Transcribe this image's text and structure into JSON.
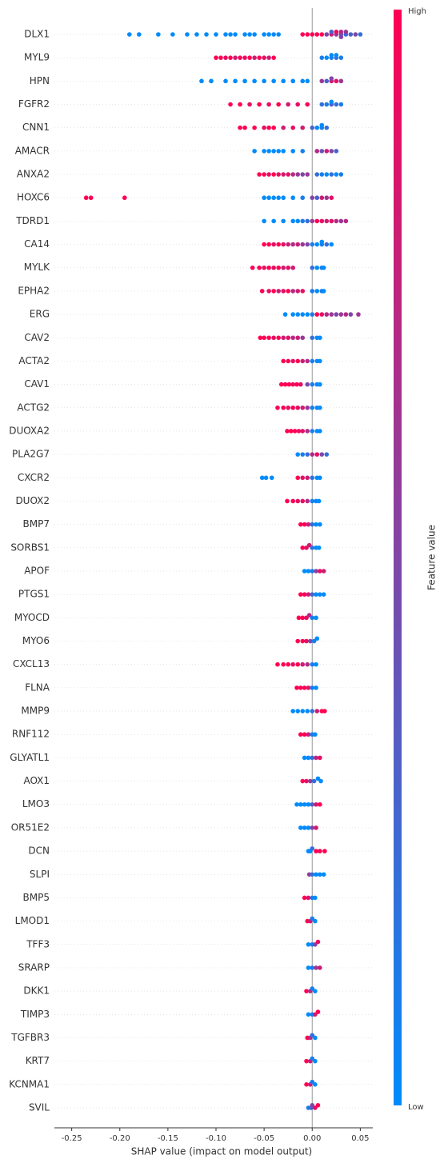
{
  "chart_data": {
    "type": "beeswarm",
    "xlabel": "SHAP value (impact on model output)",
    "xlim": [
      -0.268,
      0.063
    ],
    "xticks": [
      {
        "value": -0.25,
        "label": "-0.25"
      },
      {
        "value": -0.2,
        "label": "-0.20"
      },
      {
        "value": -0.15,
        "label": "-0.15"
      },
      {
        "value": -0.1,
        "label": "-0.10"
      },
      {
        "value": -0.05,
        "label": "-0.05"
      },
      {
        "value": 0,
        "label": "0.00"
      },
      {
        "value": 0.05,
        "label": "0.05"
      }
    ],
    "colorbar": {
      "label": "Feature value",
      "high": "High",
      "low": "Low",
      "low_color": "#008bfb",
      "high_color": "#ff0052"
    },
    "features": [
      {
        "name": "DLX1",
        "shap": [
          -0.19,
          -0.18,
          -0.16,
          -0.145,
          -0.13,
          -0.12,
          -0.11,
          -0.1,
          -0.09,
          -0.085,
          -0.08,
          -0.07,
          -0.065,
          -0.06,
          -0.05,
          -0.045,
          -0.04,
          -0.035,
          -0.01,
          -0.005,
          0.0,
          0.005,
          0.01,
          0.015,
          0.02,
          0.02,
          0.025,
          0.025,
          0.03,
          0.03,
          0.03,
          0.035,
          0.035,
          0.04,
          0.045,
          0.05
        ],
        "feature_values": [
          0,
          0,
          0,
          0,
          0,
          0,
          0,
          0,
          0,
          0,
          0,
          0,
          0,
          0,
          0,
          0,
          0,
          0,
          1,
          1,
          1,
          1,
          1,
          0.5,
          0.8,
          0.3,
          0.6,
          0.9,
          0.4,
          0.7,
          0.5,
          0.2,
          0.6,
          0.3,
          0.5,
          0.2
        ]
      },
      {
        "name": "MYL9",
        "shap": [
          -0.1,
          -0.095,
          -0.09,
          -0.085,
          -0.08,
          -0.075,
          -0.07,
          -0.065,
          -0.06,
          -0.055,
          -0.05,
          -0.045,
          -0.04,
          0.01,
          0.015,
          0.02,
          0.02,
          0.025,
          0.025,
          0.03
        ],
        "feature_values": [
          1,
          1,
          0.9,
          1,
          0.8,
          1,
          0.9,
          1,
          0.8,
          1,
          0.9,
          0.8,
          1,
          0.1,
          0,
          0.1,
          0,
          0.2,
          0,
          0.1
        ]
      },
      {
        "name": "HPN",
        "shap": [
          -0.115,
          -0.105,
          -0.09,
          -0.08,
          -0.07,
          -0.06,
          -0.05,
          -0.04,
          -0.03,
          -0.02,
          -0.01,
          -0.005,
          0.01,
          0.015,
          0.02,
          0.02,
          0.025,
          0.03
        ],
        "feature_values": [
          0,
          0,
          0,
          0,
          0,
          0,
          0,
          0,
          0,
          0,
          0,
          0,
          0.6,
          0.3,
          0.8,
          0.5,
          0.9,
          0.6
        ]
      },
      {
        "name": "FGFR2",
        "shap": [
          -0.085,
          -0.075,
          -0.065,
          -0.055,
          -0.045,
          -0.035,
          -0.025,
          -0.015,
          -0.005,
          0.01,
          0.015,
          0.02,
          0.02,
          0.025,
          0.03
        ],
        "feature_values": [
          1,
          1,
          0.9,
          1,
          0.9,
          1,
          0.8,
          0.9,
          1,
          0.2,
          0.1,
          0.3,
          0,
          0.2,
          0.1
        ]
      },
      {
        "name": "CNN1",
        "shap": [
          -0.075,
          -0.07,
          -0.06,
          -0.05,
          -0.045,
          -0.04,
          -0.03,
          -0.02,
          -0.01,
          0.0,
          0.005,
          0.01,
          0.01,
          0.015
        ],
        "feature_values": [
          1,
          1,
          1,
          0.9,
          1,
          1,
          0.8,
          0.9,
          0.8,
          0.3,
          0,
          0.1,
          0,
          0.2
        ]
      },
      {
        "name": "AMACR",
        "shap": [
          -0.06,
          -0.05,
          -0.045,
          -0.04,
          -0.035,
          -0.03,
          -0.02,
          -0.01,
          0.005,
          0.01,
          0.015,
          0.02,
          0.025
        ],
        "feature_values": [
          0,
          0,
          0,
          0,
          0,
          0,
          0,
          0.1,
          0.7,
          0.4,
          0.8,
          0.5,
          0.3
        ]
      },
      {
        "name": "ANXA2",
        "shap": [
          -0.055,
          -0.05,
          -0.045,
          -0.04,
          -0.035,
          -0.03,
          -0.025,
          -0.02,
          -0.015,
          -0.01,
          -0.005,
          0.005,
          0.01,
          0.015,
          0.02,
          0.025,
          0.03
        ],
        "feature_values": [
          1,
          1,
          0.9,
          1,
          0.9,
          0.8,
          0.9,
          0.7,
          0.6,
          0.5,
          0.6,
          0.2,
          0.1,
          0,
          0.2,
          0,
          0.1
        ]
      },
      {
        "name": "HOXC6",
        "shap": [
          -0.235,
          -0.23,
          -0.195,
          -0.05,
          -0.045,
          -0.04,
          -0.035,
          -0.03,
          -0.02,
          -0.01,
          0.0,
          0.005,
          0.01,
          0.015,
          0.02
        ],
        "feature_values": [
          1,
          1,
          1,
          0,
          0,
          0,
          0,
          0,
          0,
          0.1,
          0.5,
          0.3,
          0.8,
          0.6,
          0.9
        ]
      },
      {
        "name": "TDRD1",
        "shap": [
          -0.05,
          -0.04,
          -0.03,
          -0.02,
          -0.015,
          -0.01,
          -0.005,
          0.0,
          0.005,
          0.01,
          0.015,
          0.02,
          0.025,
          0.03,
          0.035
        ],
        "feature_values": [
          0,
          0,
          0,
          0,
          0,
          0.1,
          0.2,
          0.6,
          1,
          0.9,
          0.8,
          0.9,
          0.7,
          0.6,
          0.7
        ]
      },
      {
        "name": "CA14",
        "shap": [
          -0.05,
          -0.045,
          -0.04,
          -0.035,
          -0.03,
          -0.025,
          -0.02,
          -0.015,
          -0.01,
          -0.005,
          0.0,
          0.005,
          0.01,
          0.01,
          0.015,
          0.02
        ],
        "feature_values": [
          1,
          1,
          0.9,
          1,
          0.9,
          0.8,
          0.7,
          0.8,
          0.6,
          0.5,
          0.1,
          0,
          0.1,
          0,
          0.2,
          0
        ]
      },
      {
        "name": "MYLK",
        "shap": [
          -0.062,
          -0.055,
          -0.05,
          -0.045,
          -0.04,
          -0.035,
          -0.03,
          -0.025,
          -0.02,
          0.0,
          0.005,
          0.01,
          0.012
        ],
        "feature_values": [
          1,
          1,
          0.9,
          1,
          0.9,
          1,
          0.8,
          0.9,
          0.8,
          0.2,
          0,
          0.1,
          0
        ]
      },
      {
        "name": "EPHA2",
        "shap": [
          -0.052,
          -0.045,
          -0.04,
          -0.035,
          -0.03,
          -0.025,
          -0.02,
          -0.015,
          -0.01,
          0.0,
          0.005,
          0.01,
          0.012
        ],
        "feature_values": [
          1,
          0.9,
          1,
          0.8,
          0.9,
          1,
          0.7,
          0.8,
          0.9,
          0.1,
          0,
          0.1,
          0
        ]
      },
      {
        "name": "ERG",
        "shap": [
          -0.028,
          -0.02,
          -0.015,
          -0.01,
          -0.005,
          0.0,
          0.005,
          0.01,
          0.015,
          0.02,
          0.025,
          0.03,
          0.035,
          0.04,
          0.048
        ],
        "feature_values": [
          0,
          0,
          0,
          0,
          0,
          0.1,
          1,
          0.9,
          0.7,
          0.6,
          0.5,
          0.6,
          0.7,
          0.5,
          0.6
        ]
      },
      {
        "name": "CAV2",
        "shap": [
          -0.054,
          -0.05,
          -0.045,
          -0.04,
          -0.035,
          -0.03,
          -0.025,
          -0.02,
          -0.015,
          -0.01,
          0.0,
          0.005,
          0.008
        ],
        "feature_values": [
          1,
          1,
          1,
          0.9,
          1,
          0.8,
          0.9,
          0.7,
          0.8,
          0.6,
          0.2,
          0,
          0
        ]
      },
      {
        "name": "ACTA2",
        "shap": [
          -0.03,
          -0.025,
          -0.02,
          -0.015,
          -0.01,
          -0.005,
          0.0,
          0.005,
          0.008
        ],
        "feature_values": [
          1,
          1,
          0.9,
          1,
          0.8,
          0.7,
          0.1,
          0,
          0
        ]
      },
      {
        "name": "CAV1",
        "shap": [
          -0.032,
          -0.028,
          -0.024,
          -0.02,
          -0.016,
          -0.012,
          -0.005,
          0.0,
          0.005,
          0.008
        ],
        "feature_values": [
          1,
          1,
          1,
          0.9,
          1,
          0.9,
          0.5,
          0.1,
          0,
          0
        ]
      },
      {
        "name": "ACTG2",
        "shap": [
          -0.036,
          -0.03,
          -0.025,
          -0.02,
          -0.015,
          -0.01,
          -0.005,
          0.0,
          0.005,
          0.008
        ],
        "feature_values": [
          1,
          1,
          0.9,
          1,
          0.9,
          0.8,
          0.6,
          0.1,
          0,
          0
        ]
      },
      {
        "name": "DUOXA2",
        "shap": [
          -0.026,
          -0.022,
          -0.018,
          -0.014,
          -0.01,
          -0.005,
          0.0,
          0.005,
          0.008
        ],
        "feature_values": [
          1,
          1,
          1,
          0.9,
          0.9,
          0.7,
          0.1,
          0,
          0
        ]
      },
      {
        "name": "PLA2G7",
        "shap": [
          -0.015,
          -0.01,
          -0.005,
          0.0,
          0.005,
          0.01,
          0.015
        ],
        "feature_values": [
          0,
          0.1,
          0.2,
          0.7,
          0.9,
          0.5,
          0.2
        ]
      },
      {
        "name": "CXCR2",
        "shap": [
          -0.052,
          -0.048,
          -0.042,
          -0.015,
          -0.01,
          -0.005,
          0.0,
          0.005,
          0.008
        ],
        "feature_values": [
          0,
          0,
          0,
          1,
          0.9,
          0.8,
          0.2,
          0,
          0
        ]
      },
      {
        "name": "DUOX2",
        "shap": [
          -0.026,
          -0.02,
          -0.015,
          -0.01,
          -0.005,
          0.0,
          0.004,
          0.007
        ],
        "feature_values": [
          1,
          1,
          0.9,
          0.9,
          0.7,
          0.1,
          0,
          0
        ]
      },
      {
        "name": "BMP7",
        "shap": [
          -0.012,
          -0.008,
          -0.004,
          0.0,
          0.004,
          0.008
        ],
        "feature_values": [
          1,
          1,
          0.8,
          0.2,
          0,
          0
        ]
      },
      {
        "name": "SORBS1",
        "shap": [
          -0.01,
          -0.006,
          -0.003,
          0.0,
          0.004,
          0.007
        ],
        "feature_values": [
          1,
          0.9,
          0.8,
          0.2,
          0,
          0
        ]
      },
      {
        "name": "APOF",
        "shap": [
          -0.008,
          -0.004,
          0.0,
          0.004,
          0.008,
          0.012
        ],
        "feature_values": [
          0,
          0,
          0.1,
          0.5,
          0.9,
          0.8
        ]
      },
      {
        "name": "PTGS1",
        "shap": [
          -0.012,
          -0.008,
          -0.004,
          0.0,
          0.004,
          0.008,
          0.012
        ],
        "feature_values": [
          1,
          1,
          0.8,
          0.3,
          0,
          0,
          0
        ]
      },
      {
        "name": "MYOCD",
        "shap": [
          -0.014,
          -0.01,
          -0.006,
          -0.003,
          0.0,
          0.004
        ],
        "feature_values": [
          1,
          1,
          0.9,
          0.7,
          0.1,
          0
        ]
      },
      {
        "name": "MYO6",
        "shap": [
          -0.015,
          -0.01,
          -0.006,
          -0.002,
          0.002,
          0.005
        ],
        "feature_values": [
          1,
          1,
          0.9,
          0.5,
          0.1,
          0
        ]
      },
      {
        "name": "CXCL13",
        "shap": [
          -0.036,
          -0.03,
          -0.025,
          -0.02,
          -0.015,
          -0.01,
          -0.005,
          0.0,
          0.004
        ],
        "feature_values": [
          1,
          1,
          1,
          0.9,
          1,
          0.8,
          0.7,
          0.1,
          0
        ]
      },
      {
        "name": "FLNA",
        "shap": [
          -0.016,
          -0.012,
          -0.008,
          -0.004,
          0.0,
          0.004
        ],
        "feature_values": [
          1,
          1,
          1,
          0.9,
          0.1,
          0
        ]
      },
      {
        "name": "MMP9",
        "shap": [
          -0.02,
          -0.015,
          -0.01,
          -0.005,
          0.0,
          0.005,
          0.01,
          0.013
        ],
        "feature_values": [
          0,
          0,
          0,
          0,
          0.2,
          0.8,
          1,
          1
        ]
      },
      {
        "name": "RNF112",
        "shap": [
          -0.012,
          -0.008,
          -0.004,
          0.0,
          0.003
        ],
        "feature_values": [
          1,
          1,
          0.8,
          0.1,
          0
        ]
      },
      {
        "name": "GLYATL1",
        "shap": [
          -0.008,
          -0.004,
          0.0,
          0.004,
          0.008
        ],
        "feature_values": [
          0,
          0,
          0.2,
          0.7,
          0.9
        ]
      },
      {
        "name": "AOX1",
        "shap": [
          -0.01,
          -0.006,
          -0.002,
          0.002,
          0.006,
          0.009
        ],
        "feature_values": [
          1,
          0.9,
          0.6,
          0.2,
          0,
          0
        ]
      },
      {
        "name": "LMO3",
        "shap": [
          -0.016,
          -0.012,
          -0.008,
          -0.004,
          0.0,
          0.004,
          0.008
        ],
        "feature_values": [
          0,
          0,
          0,
          0,
          0.3,
          0.8,
          1
        ]
      },
      {
        "name": "OR51E2",
        "shap": [
          -0.012,
          -0.008,
          -0.004,
          0.0,
          0.004
        ],
        "feature_values": [
          0,
          0,
          0,
          0.5,
          0.8
        ]
      },
      {
        "name": "DCN",
        "shap": [
          -0.004,
          -0.002,
          0.0,
          0.004,
          0.008,
          0.013
        ],
        "feature_values": [
          0,
          0,
          0.2,
          1,
          1,
          1
        ]
      },
      {
        "name": "SLPI",
        "shap": [
          -0.003,
          0.0,
          0.004,
          0.008,
          0.012
        ],
        "feature_values": [
          0.6,
          0.2,
          0,
          0,
          0
        ]
      },
      {
        "name": "BMP5",
        "shap": [
          -0.008,
          -0.004,
          0.0,
          0.003
        ],
        "feature_values": [
          1,
          0.9,
          0.1,
          0
        ]
      },
      {
        "name": "LMOD1",
        "shap": [
          -0.005,
          -0.002,
          0.0,
          0.003
        ],
        "feature_values": [
          1,
          0.8,
          0.1,
          0
        ]
      },
      {
        "name": "TFF3",
        "shap": [
          -0.004,
          0.0,
          0.003,
          0.006
        ],
        "feature_values": [
          0,
          0.1,
          0.5,
          0.9
        ]
      },
      {
        "name": "SRARP",
        "shap": [
          -0.004,
          0.0,
          0.004,
          0.008
        ],
        "feature_values": [
          0,
          0.1,
          0.6,
          0.8
        ]
      },
      {
        "name": "DKK1",
        "shap": [
          -0.006,
          -0.002,
          0.0,
          0.003
        ],
        "feature_values": [
          1,
          0.7,
          0.1,
          0
        ]
      },
      {
        "name": "TIMP3",
        "shap": [
          -0.004,
          0.0,
          0.003,
          0.006
        ],
        "feature_values": [
          0,
          0.1,
          0.8,
          1
        ]
      },
      {
        "name": "TGFBR3",
        "shap": [
          -0.005,
          -0.002,
          0.0,
          0.003
        ],
        "feature_values": [
          1,
          0.7,
          0.2,
          0
        ]
      },
      {
        "name": "KRT7",
        "shap": [
          -0.006,
          -0.002,
          0.0,
          0.003
        ],
        "feature_values": [
          1,
          0.8,
          0.1,
          0
        ]
      },
      {
        "name": "KCNMA1",
        "shap": [
          -0.006,
          -0.002,
          0.0,
          0.003
        ],
        "feature_values": [
          1,
          0.8,
          0.1,
          0
        ]
      },
      {
        "name": "SVIL",
        "shap": [
          -0.004,
          -0.001,
          0.0,
          0.003,
          0.006
        ],
        "feature_values": [
          0.1,
          0.3,
          0.5,
          0.9,
          1
        ]
      }
    ]
  }
}
